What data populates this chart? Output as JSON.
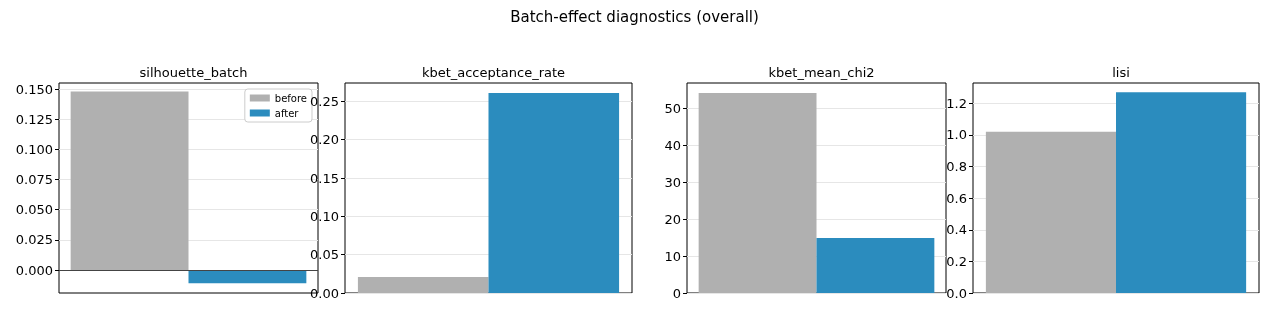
{
  "chart_data": [
    {
      "type": "bar",
      "title": "silhouette_batch",
      "categories": [
        null
      ],
      "series": [
        {
          "name": "before",
          "color": "#b0b0b0",
          "values": [
            0.148
          ]
        },
        {
          "name": "after",
          "color": "#2b8cbe",
          "values": [
            -0.011
          ]
        }
      ],
      "ylim": [
        -0.019,
        0.155
      ],
      "yticks": [
        {
          "value": 0,
          "label": "0.000"
        },
        {
          "value": 0.025,
          "label": "0.025"
        },
        {
          "value": 0.05,
          "label": "0.050"
        },
        {
          "value": 0.075,
          "label": "0.075"
        },
        {
          "value": 0.1,
          "label": "0.100"
        },
        {
          "value": 0.125,
          "label": "0.125"
        },
        {
          "value": 0.15,
          "label": "0.150"
        }
      ],
      "ref_lines": [
        {
          "axis": "y",
          "value": 0,
          "color": "#444444"
        }
      ],
      "annotations": [
        "Batch-effect diagnostics (overall)"
      ],
      "grid": "y",
      "legend": "top right"
    },
    {
      "type": "bar",
      "title": "kbet_acceptance_rate",
      "categories": [
        null
      ],
      "series": [
        {
          "color": "#b0b0b0",
          "values": [
            0.021
          ]
        },
        {
          "color": "#2b8cbe",
          "values": [
            0.261
          ]
        }
      ],
      "ylim": [
        0,
        0.274
      ],
      "yticks": [
        {
          "value": 0,
          "label": "0.00"
        },
        0.05,
        {
          "value": 0.1,
          "label": "0.10"
        },
        0.15,
        {
          "value": 0.2,
          "label": "0.20"
        },
        0.25
      ],
      "grid": "y",
      "legend": false
    },
    {
      "type": "bar",
      "title": "kbet_mean_chi2",
      "categories": [
        null
      ],
      "series": [
        {
          "color": "#b0b0b0",
          "values": [
            54.2
          ]
        },
        {
          "color": "#2b8cbe",
          "values": [
            14.9
          ]
        }
      ],
      "ylim": [
        0,
        56.9
      ],
      "yticks": [
        0,
        10,
        20,
        30,
        40,
        50
      ],
      "grid": "y",
      "legend": false
    },
    {
      "type": "bar",
      "title": "lisi",
      "categories": [
        null
      ],
      "series": [
        {
          "color": "#b0b0b0",
          "values": [
            1.02
          ]
        },
        {
          "color": "#2b8cbe",
          "values": [
            1.27
          ]
        }
      ],
      "ylim": [
        0,
        1.329
      ],
      "yticks": [
        {
          "value": 0,
          "label": "0.0"
        },
        0.2,
        0.4,
        0.6,
        0.8,
        {
          "value": 1,
          "label": "1.0"
        },
        1.2
      ],
      "grid": "y",
      "legend": false
    }
  ]
}
